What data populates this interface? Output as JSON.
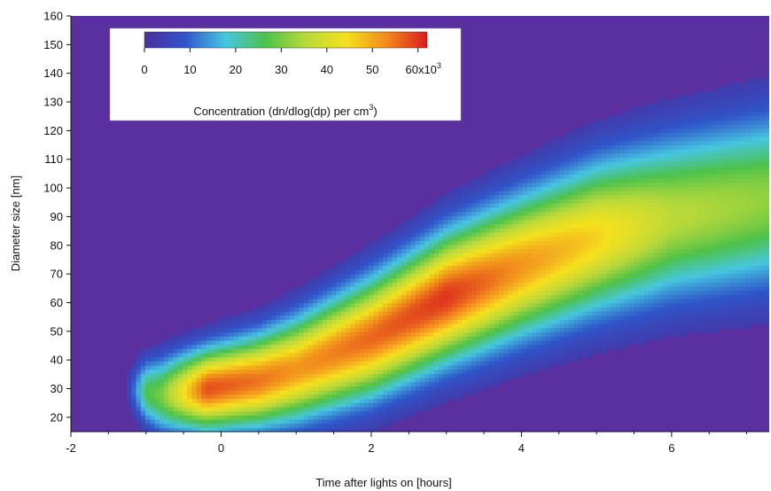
{
  "chart_data": {
    "type": "heatmap",
    "title": "",
    "xlabel": "Time after lights on [hours]",
    "ylabel": "Diameter size [nm]",
    "xlim": [
      -2.0,
      7.3
    ],
    "ylim": [
      15,
      160
    ],
    "x_ticks": [
      -2,
      0,
      2,
      4,
      6
    ],
    "x_tick_labels": [
      "-2",
      "0",
      "2",
      "4",
      "6"
    ],
    "y_ticks": [
      20,
      30,
      40,
      50,
      60,
      70,
      80,
      90,
      100,
      110,
      120,
      130,
      140,
      150,
      160
    ],
    "y_tick_labels": [
      "20",
      "30",
      "40",
      "50",
      "60",
      "70",
      "80",
      "90",
      "100",
      "110",
      "120",
      "130",
      "140",
      "150",
      "160"
    ],
    "grid": false,
    "colorbar": {
      "label": "Concentration (dn/dlog(dp) per cm",
      "label_superscript": "3",
      "label_suffix": ")",
      "range": [
        0,
        62000
      ],
      "ticks": [
        0,
        10000,
        20000,
        30000,
        40000,
        50000,
        60000
      ],
      "tick_labels": [
        "0",
        "10",
        "20",
        "30",
        "40",
        "50",
        "60x10"
      ],
      "last_tick_superscript": "3",
      "placement": "top-left",
      "colors": [
        "#4b2f9e",
        "#2f55c9",
        "#47c6e0",
        "#4dc24a",
        "#b9d93a",
        "#f5e11e",
        "#f28a1d",
        "#d81d1d"
      ]
    },
    "background_color": "#5a2fa0",
    "ridge": {
      "x": [
        -1.2,
        -0.8,
        -0.2,
        0.5,
        1.0,
        2.0,
        3.0,
        4.0,
        5.0,
        6.0,
        7.3
      ],
      "center_diameter_nm": [
        30,
        28,
        30,
        33,
        37,
        48,
        62,
        73,
        83,
        90,
        96
      ],
      "peak_concentration": [
        22000,
        30000,
        58000,
        55000,
        52000,
        56000,
        60000,
        52000,
        46000,
        36000,
        32000
      ],
      "band_width_nm": [
        10,
        14,
        15,
        17,
        19,
        22,
        24,
        26,
        28,
        30,
        32
      ]
    }
  }
}
